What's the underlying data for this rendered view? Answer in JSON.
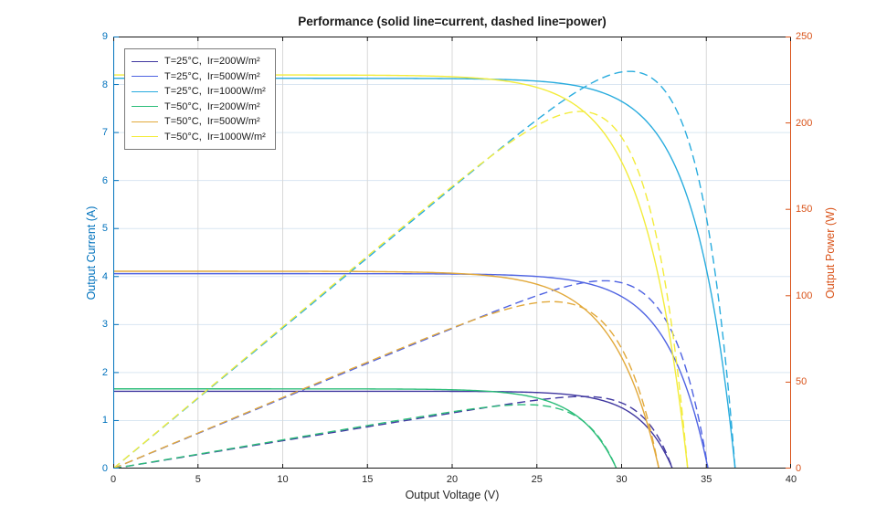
{
  "figure": {
    "background": "#FFFFFF"
  },
  "chart_data": {
    "type": "line",
    "title": "Performance (solid line=current, dashed line=power)",
    "xlabel": "Output Voltage (V)",
    "ylabel_left": "Output Current (A)",
    "ylabel_right": "Output Power (W)",
    "x_range": [
      0,
      40
    ],
    "y_left_range": [
      0,
      9
    ],
    "y_right_range": [
      0,
      250
    ],
    "x_ticks": [
      0,
      5,
      10,
      15,
      20,
      25,
      30,
      35,
      40
    ],
    "y_left_ticks": [
      0,
      1,
      2,
      3,
      4,
      5,
      6,
      7,
      8,
      9
    ],
    "y_right_ticks": [
      0,
      50,
      100,
      150,
      200,
      250
    ],
    "grid": true,
    "legend_position": "top-left",
    "axis_colors": {
      "left": "#0072BD",
      "right": "#D95319",
      "x": "#262626"
    },
    "grid_colors": {
      "horizontal": "#D9E6F2",
      "vertical": "#D8D8D8"
    },
    "line_meaning": {
      "solid": "current (A, left axis)",
      "dashed": "power (W, right axis)"
    },
    "sample_V": [
      0,
      5,
      10,
      15,
      20,
      25,
      30
    ],
    "series": [
      {
        "label": "T=25°C,  Ir=200W/m²",
        "color": "#4038A0",
        "isc_A": 1.61,
        "voc_V": 33.0,
        "knee_V": 1.94,
        "mpp_V": 28.5,
        "mpp_W": 42,
        "current_A": [
          1.61,
          1.61,
          1.61,
          1.61,
          1.61,
          1.58,
          1.27
        ]
      },
      {
        "label": "T=25°C,  Ir=500W/m²",
        "color": "#4F63E2",
        "isc_A": 4.06,
        "voc_V": 35.1,
        "knee_V": 2.38,
        "mpp_V": 29.5,
        "mpp_W": 109,
        "current_A": [
          4.06,
          4.06,
          4.06,
          4.06,
          4.05,
          4.0,
          3.58
        ]
      },
      {
        "label": "T=25°C,  Ir=1000W/m²",
        "color": "#29ACDE",
        "isc_A": 8.13,
        "voc_V": 36.7,
        "knee_V": 2.37,
        "mpp_V": 30.6,
        "mpp_W": 231,
        "current_A": [
          8.13,
          8.13,
          8.13,
          8.13,
          8.12,
          8.07,
          7.65
        ]
      },
      {
        "label": "T=50°C,  Ir=200W/m²",
        "color": "#2CBD79",
        "isc_A": 1.66,
        "voc_V": 29.7,
        "knee_V": 2.17,
        "mpp_V": 24.0,
        "mpp_W": 37,
        "current_A": [
          1.66,
          1.66,
          1.66,
          1.66,
          1.64,
          1.47,
          0
        ]
      },
      {
        "label": "T=50°C,  Ir=500W/m²",
        "color": "#E2A93B",
        "isc_A": 4.11,
        "voc_V": 32.2,
        "knee_V": 2.65,
        "mpp_V": 26.0,
        "mpp_W": 97,
        "current_A": [
          4.11,
          4.11,
          4.11,
          4.1,
          4.07,
          3.84,
          2.32
        ]
      },
      {
        "label": "T=50°C,  Ir=1000W/m²",
        "color": "#F3EC3C",
        "isc_A": 8.2,
        "voc_V": 33.9,
        "knee_V": 2.58,
        "mpp_V": 27.5,
        "mpp_W": 208,
        "current_A": [
          8.2,
          8.2,
          8.2,
          8.19,
          8.16,
          7.94,
          6.39
        ]
      }
    ]
  }
}
